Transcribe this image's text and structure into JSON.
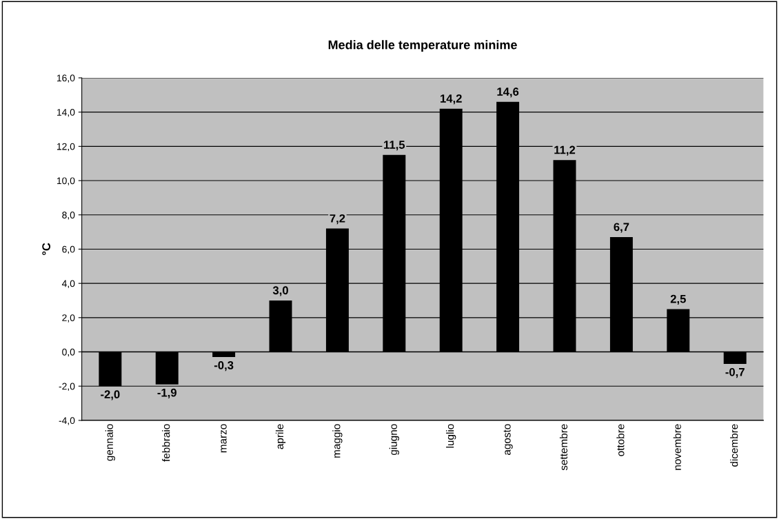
{
  "chart_data": {
    "type": "bar",
    "title": "Media delle temperature minime",
    "ylabel": "°C",
    "categories": [
      "gennaio",
      "febbraio",
      "marzo",
      "aprile",
      "maggio",
      "giugno",
      "luglio",
      "agosto",
      "settembre",
      "ottobre",
      "novembre",
      "dicembre"
    ],
    "values": [
      -2.0,
      -1.9,
      -0.3,
      3.0,
      7.2,
      11.5,
      14.2,
      14.6,
      11.2,
      6.7,
      2.5,
      -0.7
    ],
    "value_labels": [
      "-2,0",
      "-1,9",
      "-0,3",
      "3,0",
      "7,2",
      "11,5",
      "14,2",
      "14,6",
      "11,2",
      "6,7",
      "2,5",
      "-0,7"
    ],
    "color": "#000000",
    "ylim": [
      -4,
      16
    ],
    "yticks": [
      {
        "value": -4,
        "label": "-4,0"
      },
      {
        "value": -2,
        "label": "-2,0"
      },
      {
        "value": 0,
        "label": "0,0"
      },
      {
        "value": 2,
        "label": "2,0"
      },
      {
        "value": 4,
        "label": "4,0"
      },
      {
        "value": 6,
        "label": "6,0"
      },
      {
        "value": 8,
        "label": "8,0"
      },
      {
        "value": 10,
        "label": "10,0"
      },
      {
        "value": 12,
        "label": "12,0"
      },
      {
        "value": 14,
        "label": "14,0"
      },
      {
        "value": 16,
        "label": "16,0"
      }
    ],
    "grid": "y",
    "legend": false
  }
}
